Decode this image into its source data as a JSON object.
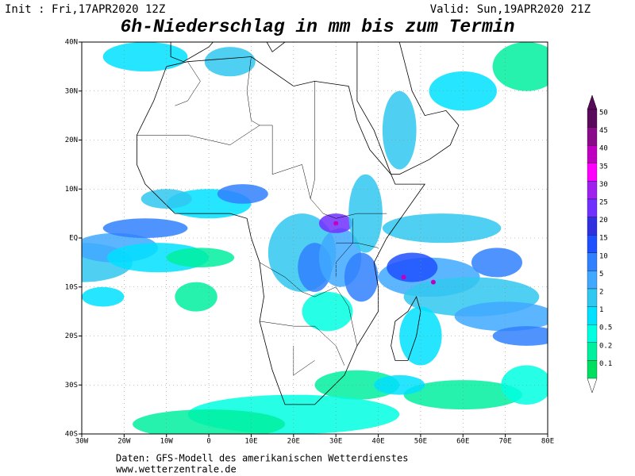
{
  "header": {
    "init": "Init : Fri,17APR2020 12Z",
    "valid": "Valid: Sun,19APR2020 21Z",
    "title": "6h-Niederschlag in mm bis zum Termin"
  },
  "map": {
    "lon_labels": [
      "30W",
      "20W",
      "10W",
      "0",
      "10E",
      "20E",
      "30E",
      "40E",
      "50E",
      "60E",
      "70E",
      "80E"
    ],
    "lat_labels": [
      "40N",
      "30N",
      "20N",
      "10N",
      "EQ",
      "10S",
      "20S",
      "30S",
      "40S"
    ]
  },
  "legend": {
    "labels": [
      50,
      45,
      40,
      35,
      30,
      25,
      20,
      15,
      10,
      5,
      2,
      1,
      0.5,
      0.2,
      0.1
    ],
    "colors": [
      "#5a0a5a",
      "#8a0a8a",
      "#c000c0",
      "#ff00ff",
      "#a020f0",
      "#7030ff",
      "#3030e0",
      "#1e50ff",
      "#3080ff",
      "#40a8ff",
      "#30c8f0",
      "#00e0ff",
      "#00ffe0",
      "#00f0a0",
      "#00e060"
    ]
  },
  "footer": {
    "source": "Daten: GFS-Modell des amerikanischen Wetterdienstes",
    "url": "www.wetterzentrale.de"
  }
}
